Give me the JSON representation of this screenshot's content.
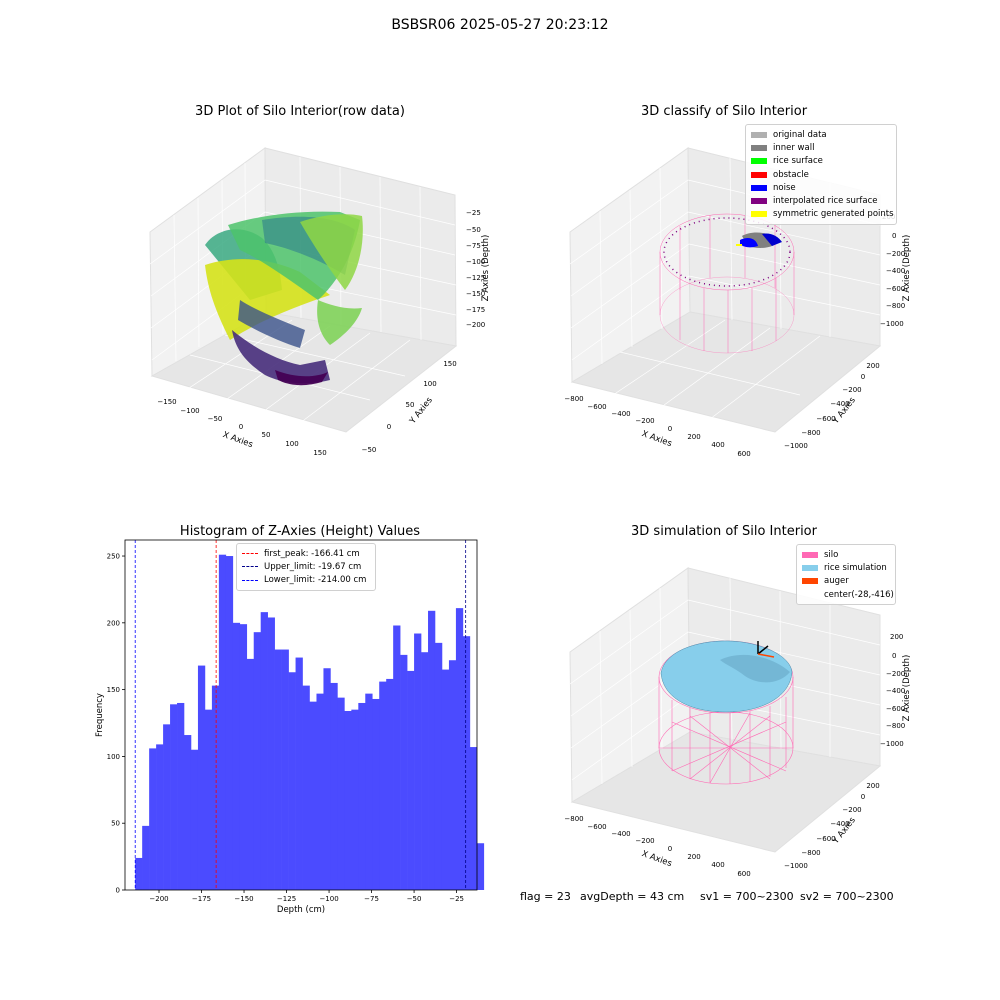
{
  "suptitle": "BSBSR06 2025-05-27 20:23:12",
  "panels": {
    "raw": {
      "title": "3D Plot of Silo Interior(row data)",
      "xlabel": "X Axies",
      "ylabel": "Y Axies",
      "zlabel": "Z Axies (Depth)",
      "xticks": [
        "−150",
        "−100",
        "−50",
        "0",
        "50",
        "100",
        "150"
      ],
      "yticks": [
        "−50",
        "0",
        "50",
        "100",
        "150"
      ],
      "zticks": [
        "−25",
        "−50",
        "−75",
        "−100",
        "−125",
        "−150",
        "−175",
        "−200"
      ]
    },
    "classify": {
      "title": "3D classify of Silo Interior",
      "xlabel": "X Axies",
      "ylabel": "Y Axies",
      "zlabel": "Z Axies (Depth)",
      "xticks": [
        "−800",
        "−600",
        "−400",
        "−200",
        "0",
        "200",
        "400",
        "600"
      ],
      "yticks": [
        "−1000",
        "−800",
        "−600",
        "−400",
        "−200",
        "0",
        "200"
      ],
      "zticks": [
        "200",
        "0",
        "−200",
        "−400",
        "−600",
        "−800",
        "−1000"
      ],
      "legend": [
        {
          "label": "original data",
          "color": "#b0b0b0"
        },
        {
          "label": "inner wall",
          "color": "#808080"
        },
        {
          "label": "rice surface",
          "color": "#00ff00"
        },
        {
          "label": "obstacle",
          "color": "#ff0000"
        },
        {
          "label": "noise",
          "color": "#0000ff"
        },
        {
          "label": "interpolated rice surface",
          "color": "#800080"
        },
        {
          "label": "symmetric generated points",
          "color": "#ffff00"
        }
      ]
    },
    "simulation": {
      "title": "3D simulation of Silo Interior",
      "xlabel": "X Axies",
      "ylabel": "Y Axies",
      "zlabel": "Z Axies (Depth)",
      "xticks": [
        "−800",
        "−600",
        "−400",
        "−200",
        "0",
        "200",
        "400",
        "600"
      ],
      "yticks": [
        "−1000",
        "−800",
        "−600",
        "−400",
        "−200",
        "0",
        "200"
      ],
      "zticks": [
        "200",
        "0",
        "−200",
        "−400",
        "−600",
        "−800",
        "−1000"
      ],
      "legend": [
        {
          "label": "silo",
          "color": "#ff69b4"
        },
        {
          "label": "rice simulation",
          "color": "#87ceeb"
        },
        {
          "label": "auger",
          "color": "#ff4500"
        },
        {
          "label": "center(-28,-416)",
          "color": ""
        }
      ]
    }
  },
  "chart_data": [
    {
      "type": "bar",
      "title": "Histogram of Z-Axies (Height) Values",
      "xlabel": "Depth (cm)",
      "ylabel": "Frequency",
      "xlim": [
        -220,
        -13
      ],
      "ylim": [
        0,
        262
      ],
      "xticks": [
        -200,
        -175,
        -150,
        -125,
        -100,
        -75,
        -50,
        -25
      ],
      "xtick_labels": [
        "−200",
        "−175",
        "−150",
        "−125",
        "−100",
        "−75",
        "−50",
        "−25"
      ],
      "yticks": [
        0,
        50,
        100,
        150,
        200,
        250
      ],
      "bar_color": "#4b4bff",
      "bin_start": -214,
      "bin_width": 4.1,
      "values": [
        24,
        48,
        106,
        109,
        124,
        139,
        140,
        116,
        105,
        168,
        135,
        153,
        251,
        250,
        200,
        199,
        173,
        193,
        208,
        204,
        180,
        180,
        163,
        174,
        153,
        141,
        147,
        166,
        155,
        144,
        134,
        135,
        140,
        147,
        143,
        156,
        158,
        198,
        176,
        164,
        192,
        178,
        209,
        185,
        165,
        172,
        211,
        190,
        107,
        35
      ],
      "lines": [
        {
          "label": "first_peak: -166.41 cm",
          "x": -166.41,
          "color": "#ff0000"
        },
        {
          "label": "Upper_limit: -19.67 cm",
          "x": -19.67,
          "color": "#00008b"
        },
        {
          "label": "Lower_limit: -214.00 cm",
          "x": -214.0,
          "color": "#0000ff"
        }
      ]
    }
  ],
  "footer": {
    "flag": "flag = 23",
    "avg_depth": "avgDepth = 43 cm",
    "sv1": "sv1 = 700~2300",
    "sv2": "sv2 = 700~2300"
  }
}
